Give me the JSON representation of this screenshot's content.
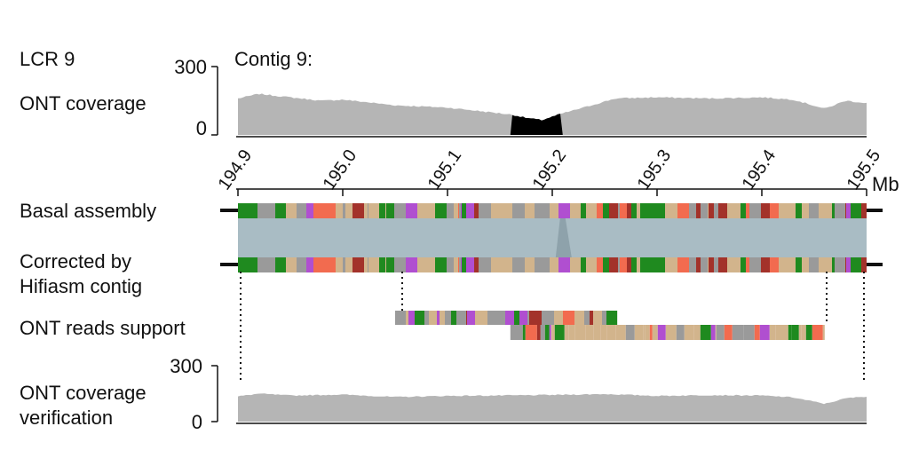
{
  "labels": {
    "section": "LCR 9",
    "contig": "Contig 9:",
    "coverage": "ONT coverage",
    "basal": "Basal assembly",
    "corrected_1": "Corrected by",
    "corrected_2": "Hifiasm contig",
    "reads_support": "ONT reads support",
    "verification_1": "ONT coverage",
    "verification_2": "verification",
    "unit": "Mb"
  },
  "chart_data": {
    "type": "area",
    "xlim": [
      194.9,
      195.5
    ],
    "ticks": [
      "194.9",
      "195.0",
      "195.1",
      "195.2",
      "195.3",
      "195.4",
      "195.5"
    ],
    "xunit": "Mb",
    "ylim": [
      0,
      300
    ],
    "yticks": [
      "300",
      "0"
    ],
    "coverage_top": {
      "x": [
        194.9,
        194.92,
        194.95,
        194.98,
        195.0,
        195.05,
        195.1,
        195.13,
        195.16,
        195.175,
        195.19,
        195.2,
        195.21,
        195.23,
        195.26,
        195.3,
        195.35,
        195.4,
        195.43,
        195.46,
        195.48,
        195.5
      ],
      "y": [
        160,
        180,
        165,
        150,
        155,
        130,
        120,
        105,
        90,
        75,
        65,
        80,
        95,
        120,
        160,
        165,
        160,
        165,
        155,
        115,
        150,
        140
      ],
      "low_region": [
        195.16,
        195.21
      ]
    },
    "coverage_verification": {
      "x": [
        194.9,
        194.92,
        194.95,
        195.0,
        195.05,
        195.1,
        195.15,
        195.2,
        195.25,
        195.3,
        195.35,
        195.4,
        195.43,
        195.46,
        195.48,
        195.5
      ],
      "y": [
        135,
        150,
        140,
        145,
        132,
        138,
        140,
        143,
        148,
        138,
        142,
        140,
        130,
        95,
        125,
        135
      ]
    },
    "reads_support": [
      {
        "start": 195.05,
        "end": 195.262
      },
      {
        "start": 195.16,
        "end": 195.46
      }
    ],
    "indel": {
      "at": 195.21
    }
  },
  "palette": {
    "tan": "#d2b48c",
    "green": "#1f8a1f",
    "salmon": "#f26b4f",
    "grey": "#9a9a9a",
    "purple": "#b04fd0",
    "brown": "#a3322a",
    "teal": "#a9bcc4",
    "coverage": "#b5b5b5",
    "low": "#000000"
  }
}
